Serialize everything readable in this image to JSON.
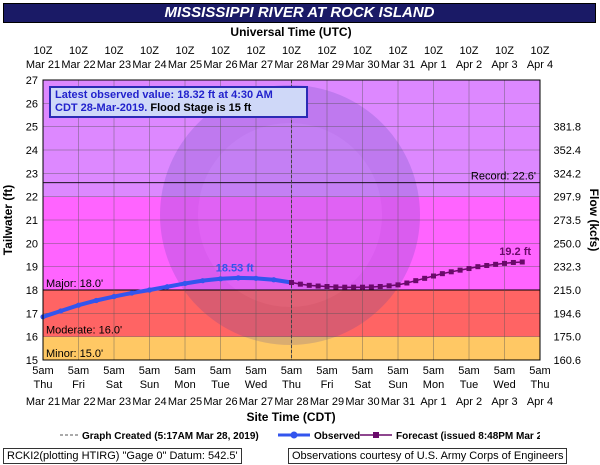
{
  "title": "MISSISSIPPI RIVER AT ROCK ISLAND",
  "top_axis_title": "Universal Time (UTC)",
  "bottom_axis_title": "Site Time (CDT)",
  "left_axis_title": "Tailwater (ft)",
  "right_axis_title": "Flow (kcfs)",
  "info_box": {
    "line1": "Latest observed value: 18.32 ft at 4:30 AM",
    "line2_blue": "CDT 28-Mar-2019.",
    "line2_black": "Flood Stage is 15 ft"
  },
  "legend": {
    "graph_created": "Graph Created (5:17AM Mar 28, 2019)",
    "observed": "Observed",
    "forecast": "Forecast (issued 8:48PM Mar 27)"
  },
  "footer": {
    "left": "RCKI2(plotting HTIRG) \"Gage 0\" Datum:  542.5'",
    "right": "Observations courtesy of U.S. Army Corps of Engineers"
  },
  "colors": {
    "minor": "#ffc864",
    "moderate": "#ff6464",
    "major": "#ff64ff",
    "above": "#dd88ff",
    "observed": "#3355ee",
    "forecast": "#6a0a6a",
    "title_bg": "#1a1a66"
  },
  "chart_data": {
    "type": "line",
    "title": "MISSISSIPPI RIVER AT ROCK ISLAND",
    "ylabel": "Tailwater (ft)",
    "y2label": "Flow (kcfs)",
    "ylim": [
      15,
      27
    ],
    "y_ticks": [
      15,
      16,
      17,
      18,
      19,
      20,
      21,
      22,
      23,
      24,
      25,
      26,
      27
    ],
    "x_range_days": [
      "Mar 21",
      "Apr 4"
    ],
    "bottom_ticks": [
      {
        "top": "5am",
        "mid": "Thu",
        "bot": "Mar 21"
      },
      {
        "top": "5am",
        "mid": "Fri",
        "bot": "Mar 22"
      },
      {
        "top": "5am",
        "mid": "Sat",
        "bot": "Mar 23"
      },
      {
        "top": "5am",
        "mid": "Sun",
        "bot": "Mar 24"
      },
      {
        "top": "5am",
        "mid": "Mon",
        "bot": "Mar 25"
      },
      {
        "top": "5am",
        "mid": "Tue",
        "bot": "Mar 26"
      },
      {
        "top": "5am",
        "mid": "Wed",
        "bot": "Mar 27"
      },
      {
        "top": "5am",
        "mid": "Thu",
        "bot": "Mar 28"
      },
      {
        "top": "5am",
        "mid": "Fri",
        "bot": "Mar 29"
      },
      {
        "top": "5am",
        "mid": "Sat",
        "bot": "Mar 30"
      },
      {
        "top": "5am",
        "mid": "Sun",
        "bot": "Mar 31"
      },
      {
        "top": "5am",
        "mid": "Mon",
        "bot": "Apr 1"
      },
      {
        "top": "5am",
        "mid": "Tue",
        "bot": "Apr 2"
      },
      {
        "top": "5am",
        "mid": "Wed",
        "bot": "Apr 3"
      },
      {
        "top": "5am",
        "mid": "Thu",
        "bot": "Apr 4"
      }
    ],
    "top_ticks": [
      {
        "top": "10Z",
        "bot": "Mar 21"
      },
      {
        "top": "10Z",
        "bot": "Mar 22"
      },
      {
        "top": "10Z",
        "bot": "Mar 23"
      },
      {
        "top": "10Z",
        "bot": "Mar 24"
      },
      {
        "top": "10Z",
        "bot": "Mar 25"
      },
      {
        "top": "10Z",
        "bot": "Mar 26"
      },
      {
        "top": "10Z",
        "bot": "Mar 27"
      },
      {
        "top": "10Z",
        "bot": "Mar 28"
      },
      {
        "top": "10Z",
        "bot": "Mar 29"
      },
      {
        "top": "10Z",
        "bot": "Mar 30"
      },
      {
        "top": "10Z",
        "bot": "Mar 31"
      },
      {
        "top": "10Z",
        "bot": "Apr 1"
      },
      {
        "top": "10Z",
        "bot": "Apr 2"
      },
      {
        "top": "10Z",
        "bot": "Apr 3"
      },
      {
        "top": "10Z",
        "bot": "Apr 4"
      }
    ],
    "flow_ticks": [
      {
        "stage": 15.0,
        "label": "160.6"
      },
      {
        "stage": 16.0,
        "label": "175.0"
      },
      {
        "stage": 17.0,
        "label": "194.6"
      },
      {
        "stage": 18.0,
        "label": "215.0"
      },
      {
        "stage": 19.0,
        "label": "232.3"
      },
      {
        "stage": 20.0,
        "label": "250.0"
      },
      {
        "stage": 21.0,
        "label": "273.5"
      },
      {
        "stage": 22.0,
        "label": "297.9"
      },
      {
        "stage": 23.0,
        "label": "324.2"
      },
      {
        "stage": 24.0,
        "label": "352.4"
      },
      {
        "stage": 25.0,
        "label": "381.8"
      }
    ],
    "categories_bands": [
      {
        "name": "Minor: 15.0'",
        "from": 15,
        "to": 16
      },
      {
        "name": "Moderate: 16.0'",
        "from": 16,
        "to": 18
      },
      {
        "name": "Major: 18.0'",
        "from": 18,
        "to": 27
      }
    ],
    "record": {
      "label": "Record: 22.6'",
      "value": 22.6
    },
    "graph_created_day": 7.0,
    "observed_peak": {
      "label": "18.53 ft",
      "day": 5.4,
      "value": 18.53
    },
    "forecast_end_label": {
      "label": "19.2 ft",
      "day": 13.3,
      "value": 19.2
    },
    "series": [
      {
        "name": "Observed",
        "points": [
          [
            0.0,
            16.85
          ],
          [
            0.5,
            17.1
          ],
          [
            1.0,
            17.35
          ],
          [
            1.5,
            17.55
          ],
          [
            2.0,
            17.72
          ],
          [
            2.5,
            17.87
          ],
          [
            3.0,
            18.0
          ],
          [
            3.5,
            18.14
          ],
          [
            4.0,
            18.28
          ],
          [
            4.5,
            18.4
          ],
          [
            5.0,
            18.48
          ],
          [
            5.5,
            18.52
          ],
          [
            6.0,
            18.5
          ],
          [
            6.5,
            18.44
          ],
          [
            7.0,
            18.32
          ]
        ]
      },
      {
        "name": "Forecast",
        "points": [
          [
            7.0,
            18.32
          ],
          [
            7.25,
            18.25
          ],
          [
            7.5,
            18.2
          ],
          [
            7.75,
            18.17
          ],
          [
            8.0,
            18.15
          ],
          [
            8.25,
            18.13
          ],
          [
            8.5,
            18.12
          ],
          [
            8.75,
            18.12
          ],
          [
            9.0,
            18.12
          ],
          [
            9.25,
            18.13
          ],
          [
            9.5,
            18.15
          ],
          [
            9.75,
            18.18
          ],
          [
            10.0,
            18.22
          ],
          [
            10.25,
            18.3
          ],
          [
            10.5,
            18.4
          ],
          [
            10.75,
            18.5
          ],
          [
            11.0,
            18.6
          ],
          [
            11.25,
            18.7
          ],
          [
            11.5,
            18.78
          ],
          [
            11.75,
            18.85
          ],
          [
            12.0,
            18.92
          ],
          [
            12.25,
            19.0
          ],
          [
            12.5,
            19.05
          ],
          [
            12.75,
            19.1
          ],
          [
            13.0,
            19.14
          ],
          [
            13.25,
            19.18
          ],
          [
            13.5,
            19.2
          ]
        ]
      }
    ]
  }
}
